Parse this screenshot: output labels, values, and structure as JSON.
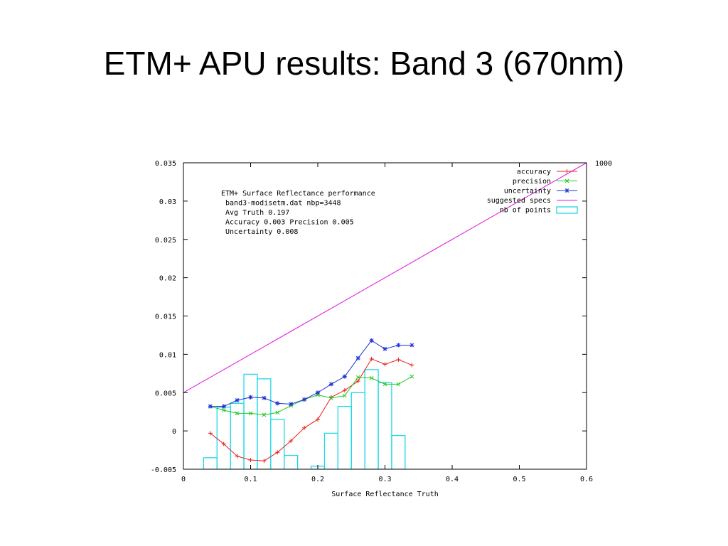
{
  "slide": {
    "title": "ETM+ APU results: Band 3 (670nm)"
  },
  "colors": {
    "accuracy": "#e8201c",
    "precision": "#1ec81e",
    "uncertainty": "#1e2fd6",
    "specs": "#e010e0",
    "points": "#20d8e8"
  },
  "chart_data": {
    "type": "line",
    "xlabel": "Surface Reflectance Truth",
    "ylabel": "",
    "xlim": [
      0,
      0.6
    ],
    "ylim": [
      -0.005,
      0.035
    ],
    "x_ticks": [
      "0",
      "0.1",
      "0.2",
      "0.3",
      "0.4",
      "0.5",
      "0.6"
    ],
    "y_ticks": [
      "-0.005",
      "0",
      "0.005",
      "0.01",
      "0.015",
      "0.02",
      "0.025",
      "0.03",
      "0.035"
    ],
    "y2_label_top": "1000",
    "grid": false,
    "legend_position": "top-right",
    "annotation": [
      "ETM+ Surface Reflectance performance",
      " band3-modisetm.dat nbp=3448",
      " Avg Truth 0.197",
      " Accuracy 0.003 Precision 0.005",
      " Uncertainty 0.008"
    ],
    "series": [
      {
        "name": "accuracy",
        "x": [
          0.04,
          0.06,
          0.08,
          0.1,
          0.12,
          0.14,
          0.16,
          0.18,
          0.2,
          0.22,
          0.24,
          0.26,
          0.28,
          0.3,
          0.32,
          0.34
        ],
        "y": [
          -0.0003,
          -0.0017,
          -0.0033,
          -0.0038,
          -0.0039,
          -0.0028,
          -0.0013,
          0.0004,
          0.0015,
          0.0044,
          0.0053,
          0.0065,
          0.0094,
          0.0087,
          0.0093,
          0.0086
        ]
      },
      {
        "name": "precision",
        "x": [
          0.04,
          0.06,
          0.08,
          0.1,
          0.12,
          0.14,
          0.16,
          0.18,
          0.2,
          0.22,
          0.24,
          0.26,
          0.28,
          0.3,
          0.32,
          0.34
        ],
        "y": [
          0.0032,
          0.0027,
          0.0023,
          0.0023,
          0.0021,
          0.0024,
          0.0033,
          0.0041,
          0.0047,
          0.0043,
          0.0046,
          0.007,
          0.0069,
          0.0061,
          0.0061,
          0.0071
        ]
      },
      {
        "name": "uncertainty",
        "x": [
          0.04,
          0.06,
          0.08,
          0.1,
          0.12,
          0.14,
          0.16,
          0.18,
          0.2,
          0.22,
          0.24,
          0.26,
          0.28,
          0.3,
          0.32,
          0.34
        ],
        "y": [
          0.0032,
          0.0032,
          0.004,
          0.0044,
          0.0043,
          0.0036,
          0.0035,
          0.0041,
          0.005,
          0.0061,
          0.0071,
          0.0095,
          0.0118,
          0.0107,
          0.0112,
          0.0112
        ]
      },
      {
        "name": "suggested specs",
        "x": [
          0,
          0.6
        ],
        "y": [
          0.005,
          0.035
        ]
      }
    ],
    "histogram": {
      "name": "nb of points",
      "x_left": [
        0.03,
        0.05,
        0.07,
        0.09,
        0.11,
        0.13,
        0.15,
        0.19,
        0.21,
        0.23,
        0.25,
        0.27,
        0.29,
        0.31
      ],
      "top_y": [
        -0.0035,
        0.0031,
        0.0036,
        0.0074,
        0.0068,
        0.0015,
        -0.0032,
        -0.0046,
        -0.0003,
        0.0032,
        0.005,
        0.008,
        0.0063,
        -0.0006
      ],
      "bin_width": 0.02
    }
  }
}
